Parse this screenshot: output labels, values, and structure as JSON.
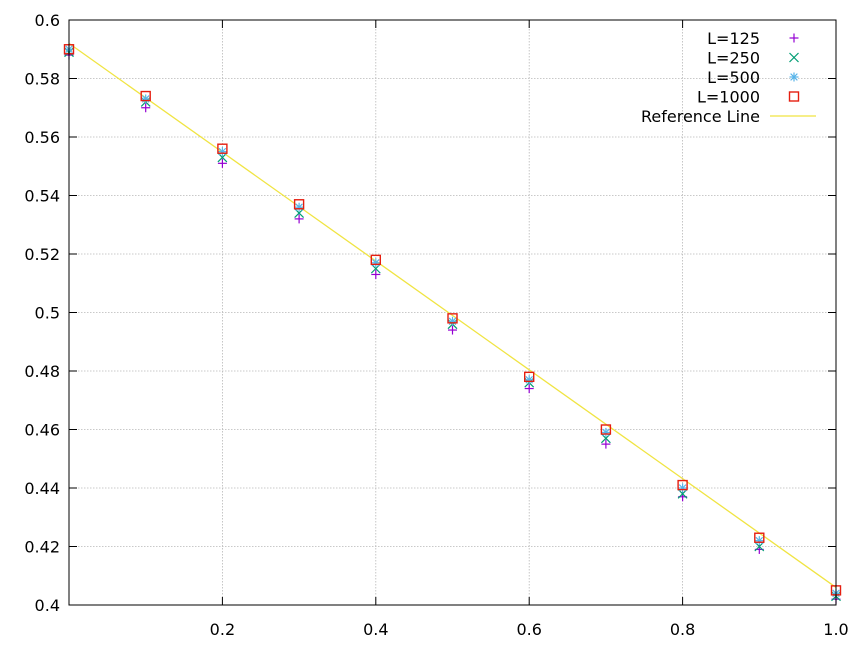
{
  "chart_data": {
    "type": "scatter",
    "title": "",
    "xlabel": "",
    "ylabel": "",
    "xlim": [
      0.0,
      1.0
    ],
    "ylim": [
      0.4,
      0.6
    ],
    "grid": true,
    "legend_position": "top-right",
    "x_ticks": [
      "0.2",
      "0.4",
      "0.6",
      "0.8",
      "1.0"
    ],
    "y_ticks": [
      "0.4",
      "0.42",
      "0.44",
      "0.46",
      "0.48",
      "0.5",
      "0.52",
      "0.54",
      "0.56",
      "0.58",
      "0.6"
    ],
    "x": [
      0.0,
      0.1,
      0.2,
      0.3,
      0.4,
      0.5,
      0.6,
      0.7,
      0.8,
      0.9,
      1.0
    ],
    "series": [
      {
        "name": "L=125",
        "marker": "plus",
        "color": "#9400D3",
        "values": [
          0.588,
          0.57,
          0.551,
          0.532,
          0.513,
          0.494,
          0.474,
          0.455,
          0.437,
          0.419,
          0.402
        ]
      },
      {
        "name": "L=250",
        "marker": "cross",
        "color": "#009E73",
        "values": [
          0.589,
          0.572,
          0.553,
          0.534,
          0.515,
          0.496,
          0.476,
          0.457,
          0.438,
          0.42,
          0.403
        ]
      },
      {
        "name": "L=500",
        "marker": "star",
        "color": "#56B4E9",
        "values": [
          0.59,
          0.573,
          0.555,
          0.536,
          0.517,
          0.497,
          0.477,
          0.459,
          0.44,
          0.422,
          0.404
        ]
      },
      {
        "name": "L=1000",
        "marker": "square",
        "color": "#E51E10",
        "values": [
          0.59,
          0.574,
          0.556,
          0.537,
          0.518,
          0.498,
          0.478,
          0.46,
          0.441,
          0.423,
          0.405
        ]
      }
    ],
    "reference_line": {
      "name": "Reference Line",
      "color": "#F0E442",
      "x": [
        0.0,
        1.0
      ],
      "y": [
        0.592,
        0.406
      ]
    }
  }
}
